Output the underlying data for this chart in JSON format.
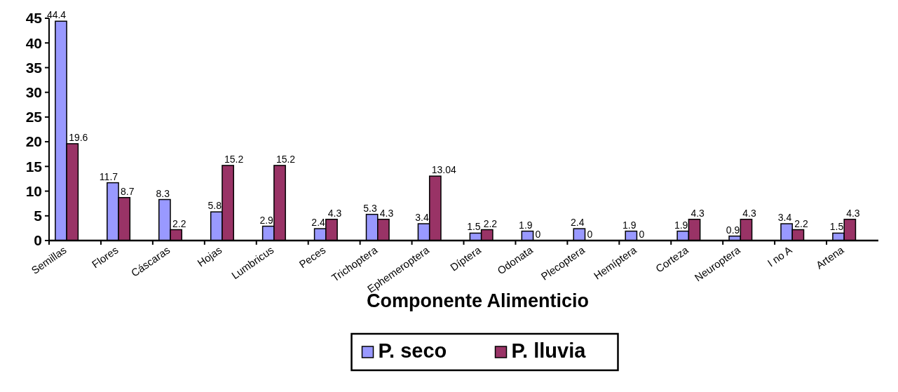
{
  "chart_data": {
    "type": "bar",
    "xlabel": "Componente Alimenticio",
    "categories": [
      "Semillas",
      "Flores",
      "Cáscaras",
      "Hojas",
      "Lumbricus",
      "Peces",
      "Trichoptera",
      "Ephemeroptera",
      "Díptera",
      "Odonata",
      "Plecoptera",
      "Hemíptera",
      "Corteza",
      "Neuroptera",
      "I no A",
      "Artena"
    ],
    "series": [
      {
        "name": "P. seco",
        "color": "#9999ff",
        "values": [
          44.4,
          11.7,
          8.3,
          5.8,
          2.9,
          2.4,
          5.3,
          3.4,
          1.5,
          1.9,
          2.4,
          1.9,
          1.9,
          0.9,
          3.4,
          1.5
        ]
      },
      {
        "name": "P. lluvia",
        "color": "#993366",
        "values": [
          19.6,
          8.7,
          2.2,
          15.2,
          15.2,
          4.3,
          4.3,
          13.04,
          2.2,
          0,
          0,
          0,
          4.3,
          4.3,
          2.2,
          4.3
        ]
      }
    ],
    "ylim": [
      0,
      45
    ],
    "yticks": [
      0,
      5,
      10,
      15,
      20,
      25,
      30,
      35,
      40,
      45
    ],
    "data_labels": true,
    "legend": "bottom",
    "grid": false
  }
}
